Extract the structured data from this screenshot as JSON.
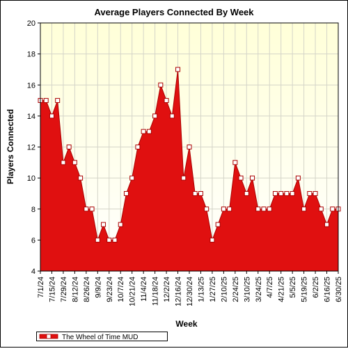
{
  "chart_data": {
    "type": "area",
    "title": "Average Players Connected By Week",
    "xlabel": "Week",
    "ylabel": "Players Connected",
    "ylim": [
      4,
      20
    ],
    "yticks": [
      4,
      6,
      8,
      10,
      12,
      14,
      16,
      18,
      20
    ],
    "grid": true,
    "legend_position": "bottom-left",
    "colors": {
      "fill": "#e01010",
      "line": "#aa0000",
      "marker_fill": "#ffffff",
      "plot_bg_top": "#ffffd8",
      "plot_bg_bottom": "#ffffff",
      "grid": "#d4d4c8"
    },
    "x_tick_labels": [
      "7/1/24",
      "7/15/24",
      "7/29/24",
      "8/12/24",
      "8/26/24",
      "9/9/24",
      "9/23/24",
      "10/7/24",
      "10/21/24",
      "11/4/24",
      "11/18/24",
      "12/2/24",
      "12/16/24",
      "12/30/24",
      "1/13/25",
      "1/27/25",
      "2/10/25",
      "2/24/25",
      "3/10/25",
      "3/24/25",
      "4/7/25",
      "4/21/25",
      "5/5/25",
      "5/19/25",
      "6/2/25",
      "6/16/25",
      "6/30/25"
    ],
    "series": [
      {
        "name": "The Wheel of Time MUD",
        "values": [
          15,
          15,
          14,
          15,
          11,
          12,
          11,
          10,
          8,
          8,
          6,
          7,
          6,
          6,
          7,
          9,
          10,
          12,
          13,
          13,
          14,
          16,
          15,
          14,
          17,
          10,
          12,
          9,
          9,
          8,
          6,
          7,
          8,
          8,
          11,
          10,
          9,
          10,
          8,
          8,
          8,
          9,
          9,
          9,
          9,
          10,
          8,
          9,
          9,
          8,
          7,
          8,
          8
        ]
      }
    ]
  }
}
